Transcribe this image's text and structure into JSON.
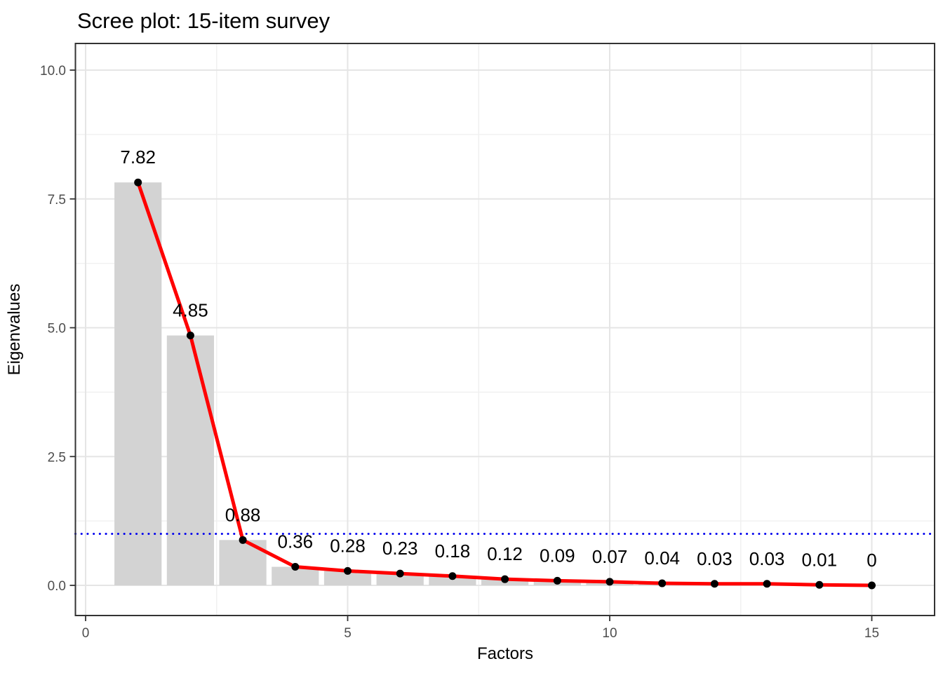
{
  "chart_data": {
    "type": "bar",
    "subtype": "scree-plot-with-line",
    "title": "Scree plot: 15-item survey",
    "xlabel": "Factors",
    "ylabel": "Eigenvalues",
    "factors": [
      1,
      2,
      3,
      4,
      5,
      6,
      7,
      8,
      9,
      10,
      11,
      12,
      13,
      14,
      15
    ],
    "eigenvalues": [
      7.82,
      4.85,
      0.88,
      0.36,
      0.28,
      0.23,
      0.18,
      0.12,
      0.09,
      0.07,
      0.04,
      0.03,
      0.03,
      0.01,
      0
    ],
    "point_labels": [
      "7.82",
      "4.85",
      "0.88",
      "0.36",
      "0.28",
      "0.23",
      "0.18",
      "0.12",
      "0.09",
      "0.07",
      "0.04",
      "0.03",
      "0.03",
      "0.01",
      "0"
    ],
    "bar_width": 0.9,
    "reference_line_y": 1,
    "x_ticks": [
      {
        "value": 0,
        "label": "0"
      },
      {
        "value": 5,
        "label": "5"
      },
      {
        "value": 10,
        "label": "10"
      },
      {
        "value": 15,
        "label": "15"
      }
    ],
    "y_ticks": [
      {
        "value": 0,
        "label": "0.0"
      },
      {
        "value": 2.5,
        "label": "2.5"
      },
      {
        "value": 5,
        "label": "5.0"
      },
      {
        "value": 7.5,
        "label": "7.5"
      },
      {
        "value": 10,
        "label": "10.0"
      }
    ],
    "x_minor_gridlines": [
      2.5,
      7.5,
      12.5
    ],
    "y_minor_gridlines": [
      1.25,
      3.75,
      6.25,
      8.75
    ],
    "xlim": [
      -0.2,
      16.2
    ],
    "ylim": [
      -0.59,
      10.52
    ],
    "grid": true,
    "legend": "none",
    "colors": {
      "bar_fill": "#D3D3D3",
      "line": "#FF0000",
      "point": "#000000",
      "reference_line": "#0000EE",
      "grid_major": "#E5E5E5",
      "grid_minor": "#EFEFEF",
      "panel_border": "#333333",
      "tick_mark": "#333333",
      "tick_text": "#4D4D4D",
      "title_text": "#000000",
      "panel_background": "#FFFFFF"
    }
  }
}
